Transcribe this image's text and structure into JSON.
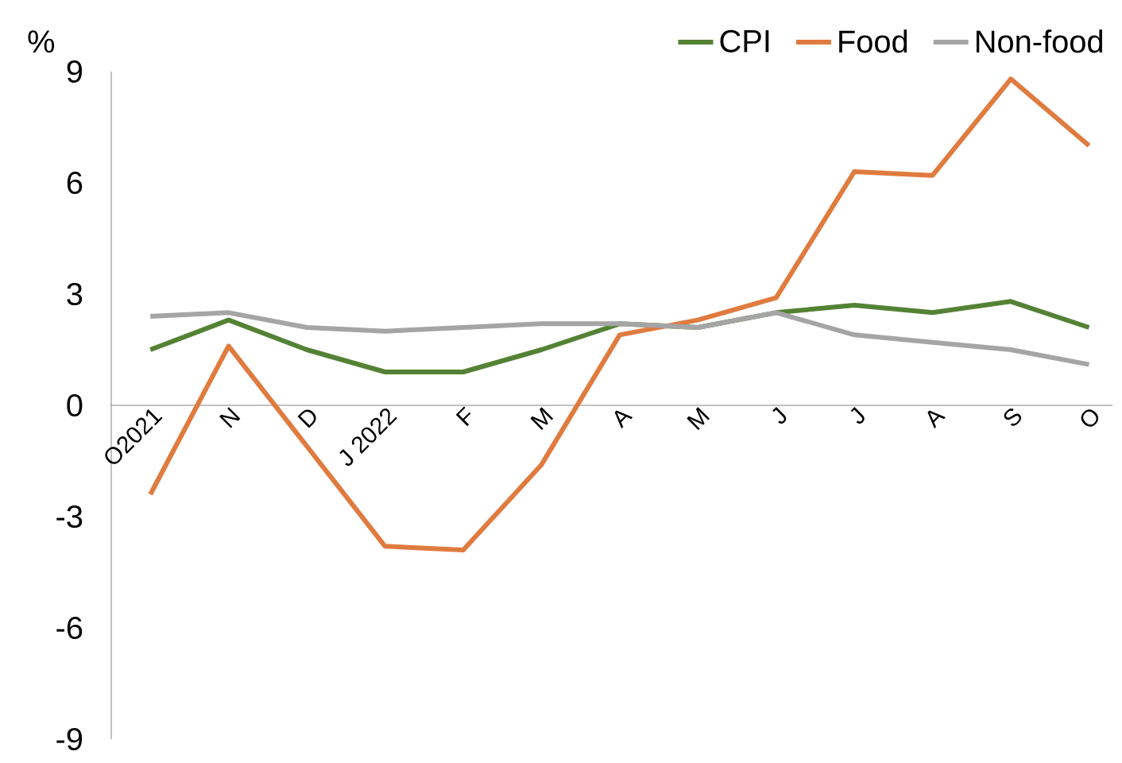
{
  "chart_data": {
    "type": "line",
    "ylabel": "%",
    "categories": [
      "O2021",
      "N",
      "D",
      "J 2022",
      "F",
      "M",
      "A",
      "M",
      "J",
      "J",
      "A",
      "S",
      "O"
    ],
    "series": [
      {
        "name": "CPI",
        "color": "#548235",
        "values": [
          1.5,
          2.3,
          1.5,
          0.9,
          0.9,
          1.5,
          2.2,
          2.1,
          2.5,
          2.7,
          2.5,
          2.8,
          2.1
        ]
      },
      {
        "name": "Food",
        "color": "#e07b3f",
        "values": [
          -2.4,
          1.6,
          -1.1,
          -3.8,
          -3.9,
          -1.6,
          1.9,
          2.3,
          2.9,
          6.3,
          6.2,
          8.8,
          7.0
        ]
      },
      {
        "name": "Non-food",
        "color": "#a5a5a5",
        "values": [
          2.4,
          2.5,
          2.1,
          2.0,
          2.1,
          2.2,
          2.2,
          2.1,
          2.5,
          1.9,
          1.7,
          1.5,
          1.1
        ]
      }
    ],
    "ylim": [
      -9,
      9
    ],
    "yticks": [
      -9,
      -6,
      -3,
      0,
      3,
      6,
      9
    ],
    "grid": false,
    "legend": "top right",
    "marker": "none",
    "line_style": "solid"
  }
}
